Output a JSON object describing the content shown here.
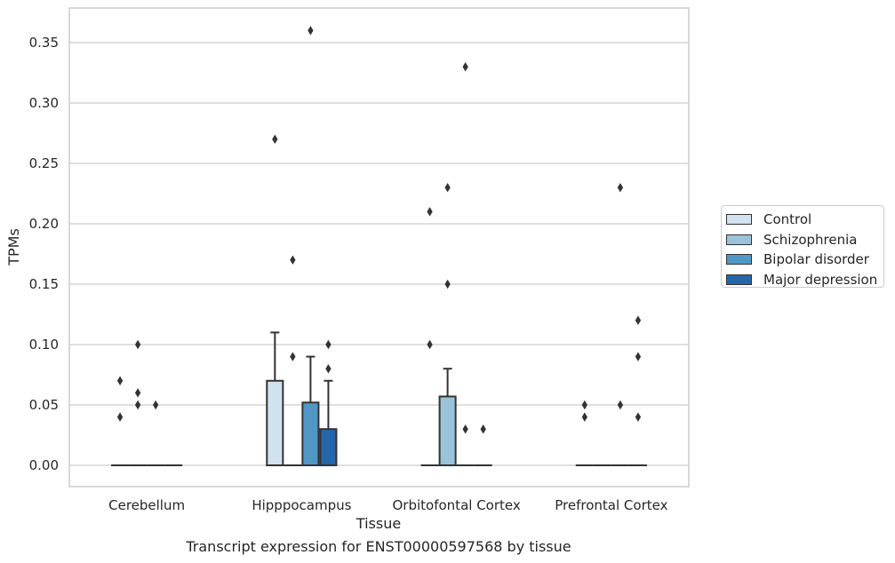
{
  "chart_data": {
    "type": "box",
    "xlabel": "Tissue",
    "ylabel": "TPMs",
    "caption": "Transcript expression for ENST00000597568 by tissue",
    "ylim": [
      -0.018,
      0.378
    ],
    "yticks": [
      "0.00",
      "0.05",
      "0.10",
      "0.15",
      "0.20",
      "0.25",
      "0.30",
      "0.35"
    ],
    "grid": "horizontal",
    "legend_position": "right",
    "categories": [
      "Cerebellum",
      "Hipppocampus",
      "Orbitofontal Cortex",
      "Prefrontal Cortex"
    ],
    "series": [
      {
        "name": "Control",
        "color": "#d1e1f0",
        "boxes": [
          {
            "q1": 0,
            "median": 0,
            "q3": 0,
            "whisker_low": 0,
            "whisker_high": 0,
            "outliers": [
              0.07,
              0.04
            ]
          },
          {
            "q1": 0,
            "median": 0,
            "q3": 0.07,
            "whisker_low": 0,
            "whisker_high": 0.11,
            "outliers": [
              0.27
            ]
          },
          {
            "q1": 0,
            "median": 0,
            "q3": 0,
            "whisker_low": 0,
            "whisker_high": 0,
            "outliers": [
              0.21,
              0.1
            ]
          },
          {
            "q1": 0,
            "median": 0,
            "q3": 0,
            "whisker_low": 0,
            "whisker_high": 0,
            "outliers": [
              0.05,
              0.04
            ]
          }
        ]
      },
      {
        "name": "Schizophrenia",
        "color": "#9ac3db",
        "boxes": [
          {
            "q1": 0,
            "median": 0,
            "q3": 0,
            "whisker_low": 0,
            "whisker_high": 0,
            "outliers": [
              0.1,
              0.06,
              0.05
            ]
          },
          {
            "q1": 0,
            "median": 0,
            "q3": 0,
            "whisker_low": 0,
            "whisker_high": 0,
            "outliers": [
              0.17,
              0.09
            ]
          },
          {
            "q1": 0,
            "median": 0,
            "q3": 0.057,
            "whisker_low": 0,
            "whisker_high": 0.08,
            "outliers": [
              0.23,
              0.15
            ]
          },
          {
            "q1": 0,
            "median": 0,
            "q3": 0,
            "whisker_low": 0,
            "whisker_high": 0,
            "outliers": []
          }
        ]
      },
      {
        "name": "Bipolar disorder",
        "color": "#5197c6",
        "boxes": [
          {
            "q1": 0,
            "median": 0,
            "q3": 0,
            "whisker_low": 0,
            "whisker_high": 0,
            "outliers": [
              0.05
            ]
          },
          {
            "q1": 0,
            "median": 0,
            "q3": 0.052,
            "whisker_low": 0,
            "whisker_high": 0.09,
            "outliers": [
              0.36
            ]
          },
          {
            "q1": 0,
            "median": 0,
            "q3": 0,
            "whisker_low": 0,
            "whisker_high": 0,
            "outliers": [
              0.33,
              0.03
            ]
          },
          {
            "q1": 0,
            "median": 0,
            "q3": 0,
            "whisker_low": 0,
            "whisker_high": 0,
            "outliers": [
              0.23,
              0.05
            ]
          }
        ]
      },
      {
        "name": "Major depression",
        "color": "#2566a8",
        "boxes": [
          {
            "q1": 0,
            "median": 0,
            "q3": 0,
            "whisker_low": 0,
            "whisker_high": 0,
            "outliers": []
          },
          {
            "q1": 0,
            "median": 0,
            "q3": 0.03,
            "whisker_low": 0,
            "whisker_high": 0.07,
            "outliers": [
              0.1,
              0.08
            ]
          },
          {
            "q1": 0,
            "median": 0,
            "q3": 0,
            "whisker_low": 0,
            "whisker_high": 0,
            "outliers": [
              0.03
            ]
          },
          {
            "q1": 0,
            "median": 0,
            "q3": 0,
            "whisker_low": 0,
            "whisker_high": 0,
            "outliers": [
              0.12,
              0.09,
              0.04
            ]
          }
        ]
      }
    ]
  }
}
